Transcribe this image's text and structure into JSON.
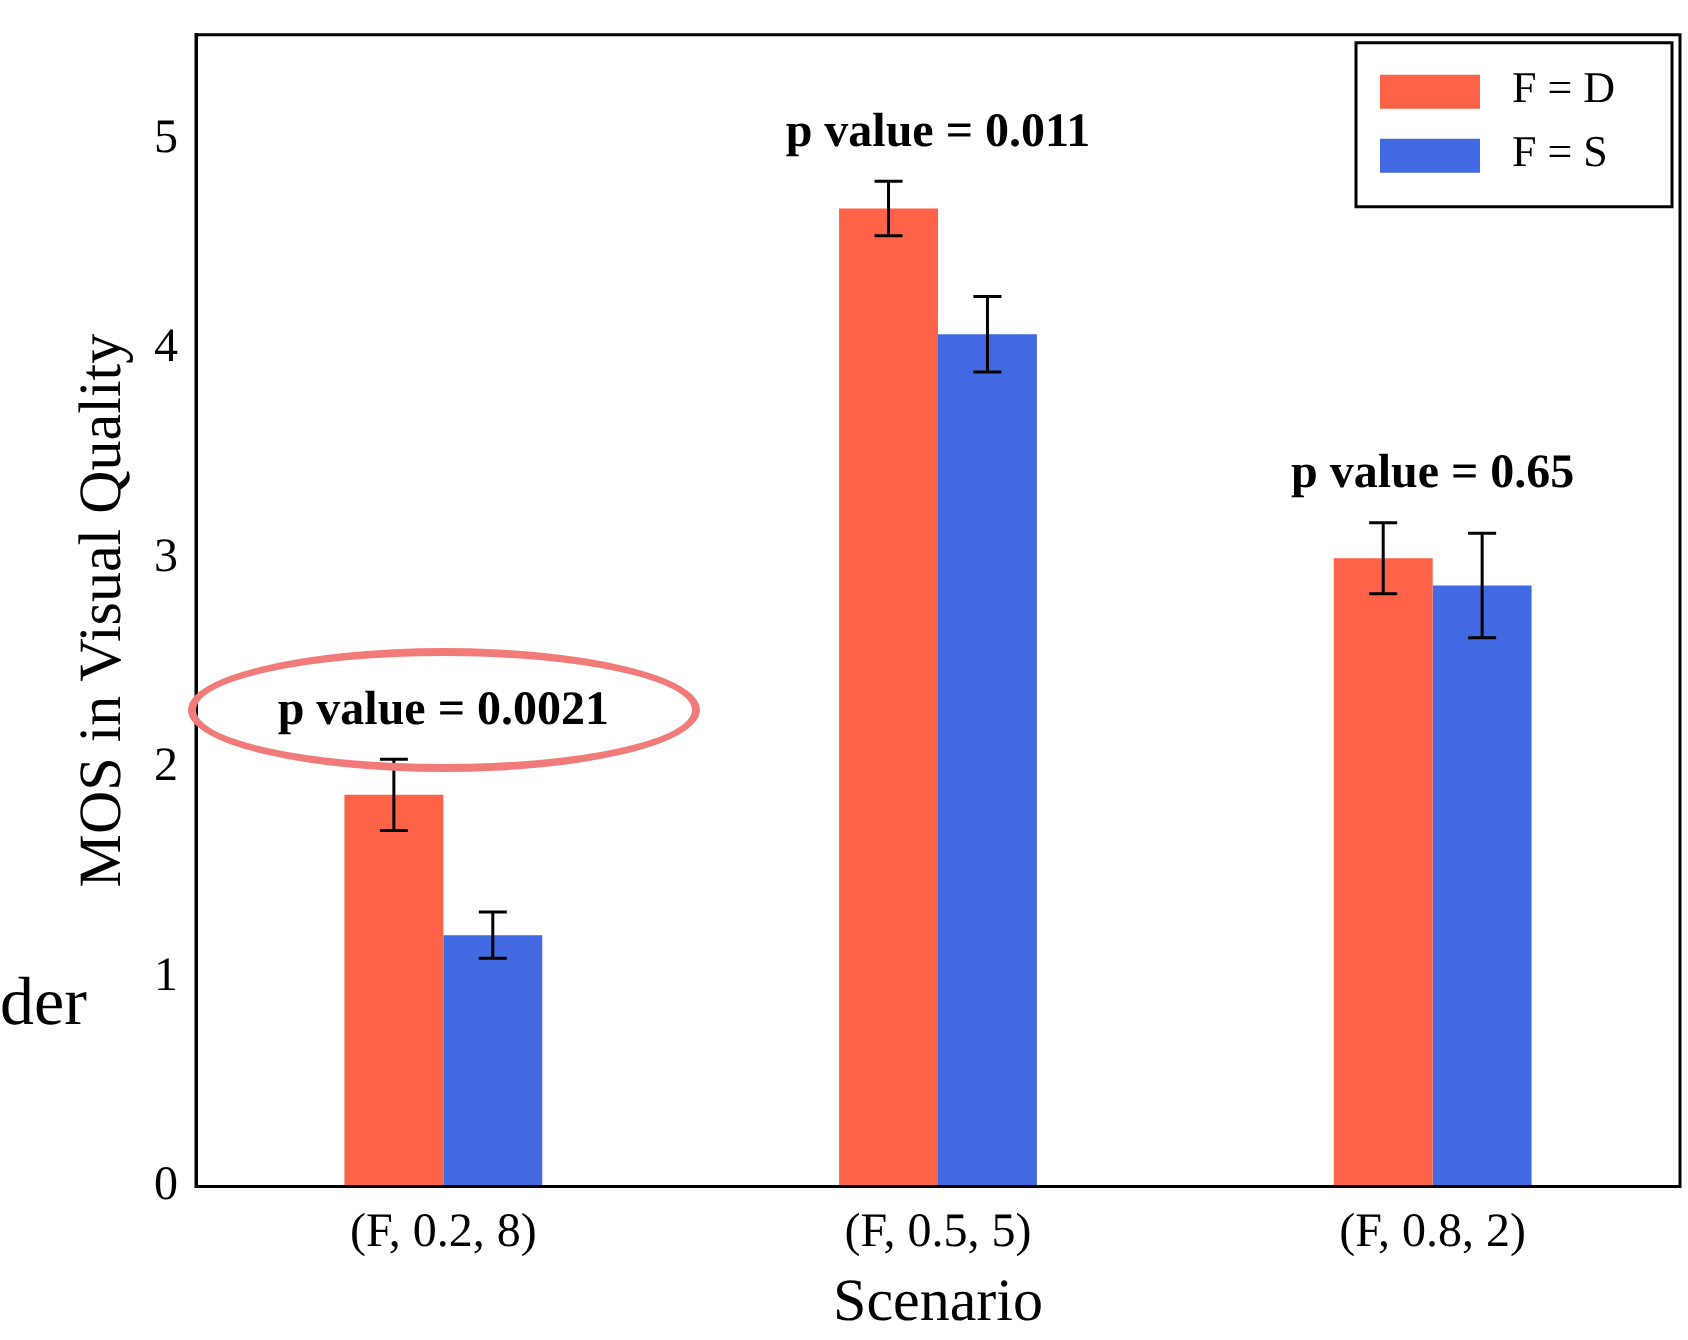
{
  "chart_data": {
    "type": "bar",
    "xlabel": "Scenario",
    "ylabel": "MOS in Visual Quality",
    "categories": [
      "(F, 0.2, 8)",
      "(F, 0.5, 5)",
      "(F, 0.8, 2)"
    ],
    "series": [
      {
        "name": "F = D",
        "color": "#ff6347",
        "values": [
          1.87,
          4.67,
          3.0
        ],
        "errors": [
          0.17,
          0.13,
          0.17
        ]
      },
      {
        "name": "F = S",
        "color": "#4169e1",
        "values": [
          1.2,
          4.07,
          2.87
        ],
        "errors": [
          0.11,
          0.18,
          0.25
        ]
      }
    ],
    "ylim": [
      0,
      5.5
    ],
    "yticks": [
      0,
      1,
      2,
      3,
      4,
      5
    ],
    "grid": false,
    "legend": "top right",
    "annotations": [
      "p value = 0.0021",
      "p value = 0.011",
      "p value = 0.65",
      "der"
    ]
  }
}
